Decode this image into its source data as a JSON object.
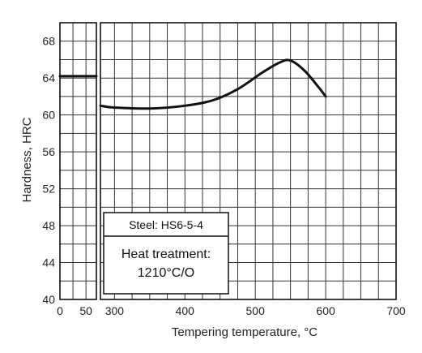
{
  "chart_data": {
    "type": "line",
    "title": "",
    "xlabel": "Tempering temperature, °C",
    "ylabel": "Hardness, HRC",
    "ylim": [
      40,
      70
    ],
    "y_ticks": [
      40,
      44,
      48,
      52,
      56,
      60,
      64,
      68
    ],
    "grid": true,
    "axis_break": "x",
    "x_panels": [
      {
        "xlim": [
          0,
          70
        ],
        "x_ticks": [
          0,
          50
        ],
        "series": {
          "x": [
            0,
            70
          ],
          "y": [
            64.2,
            64.2
          ]
        }
      },
      {
        "xlim": [
          280,
          700
        ],
        "x_ticks": [
          300,
          400,
          500,
          600,
          700
        ],
        "series": {
          "x": [
            280,
            300,
            350,
            400,
            440,
            475,
            510,
            535,
            550,
            570,
            590,
            600
          ],
          "y": [
            61.0,
            60.8,
            60.7,
            61.0,
            61.6,
            62.8,
            64.6,
            65.7,
            65.9,
            64.8,
            63.0,
            62.0
          ]
        }
      }
    ],
    "annotation": {
      "title": "Steel: HS6-5-4",
      "lines": [
        "Heat treatment:",
        "1210°C/O"
      ]
    }
  }
}
